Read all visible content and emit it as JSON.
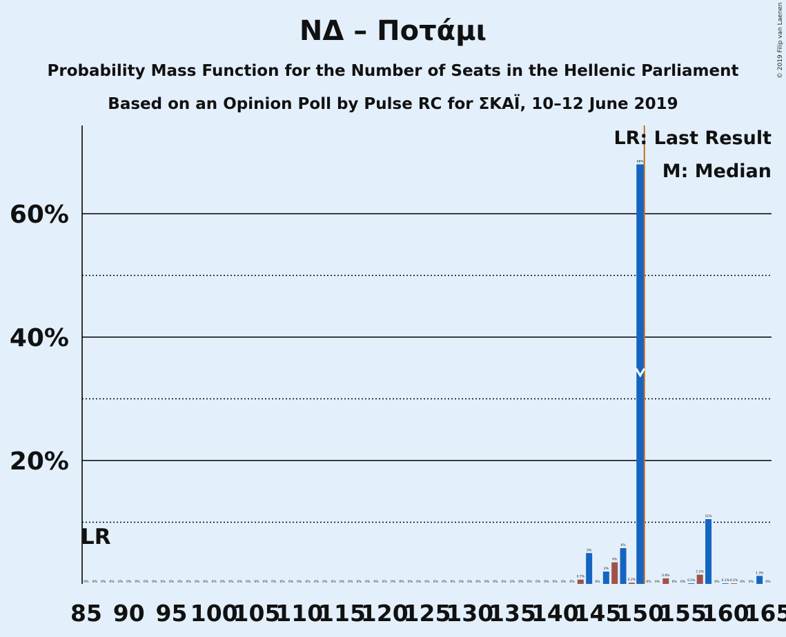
{
  "header": {
    "title": "ΝΔ – Ποτάμι",
    "subtitle1": "Probability Mass Function for the Number of Seats in the Hellenic Parliament",
    "subtitle2": "Based on an Opinion Poll by Pulse RC for ΣΚΑΪ, 10–12 June 2019",
    "copyright": "© 2019 Filip van Laenen"
  },
  "legend": {
    "last_result": "LR: Last Result",
    "median": "M: Median"
  },
  "colors": {
    "background": "#e3f0fc",
    "bar_primary": "#1565c0",
    "bar_secondary": "#a0524a",
    "last_result_line": "#c07020",
    "median_marker": "#ffffff"
  },
  "chart_data": {
    "type": "bar",
    "x_start": 85,
    "x_end": 165,
    "x_tick_labels": [
      "85",
      "90",
      "95",
      "100",
      "105",
      "110",
      "115",
      "120",
      "125",
      "130",
      "135",
      "140",
      "145",
      "150",
      "155",
      "160",
      "165"
    ],
    "y_tick_labels": [
      "20%",
      "40%",
      "60%"
    ],
    "ylim": [
      0,
      74
    ],
    "grid_solid": [
      20,
      40,
      60
    ],
    "grid_dotted": [
      10,
      30,
      50
    ],
    "last_result_seat": 150,
    "last_result_label": "LR",
    "median_seat": 150,
    "seats": [
      143,
      144,
      146,
      147,
      148,
      149,
      150,
      153,
      156,
      157,
      158,
      160,
      161,
      164
    ],
    "values": [
      0.7,
      5,
      2,
      3.5,
      5.8,
      0.2,
      68,
      0.9,
      0.1,
      1.5,
      10.5,
      0.1,
      0.1,
      1.3
    ],
    "labels": [
      "0.7%",
      "5%",
      "2%",
      "4%",
      "6%",
      "0.2%",
      "68%",
      "0.9%",
      "0.1%",
      "1.5%",
      "11%",
      "0.1%",
      "0.1%",
      "1.3%"
    ],
    "zero_label": "0%"
  }
}
